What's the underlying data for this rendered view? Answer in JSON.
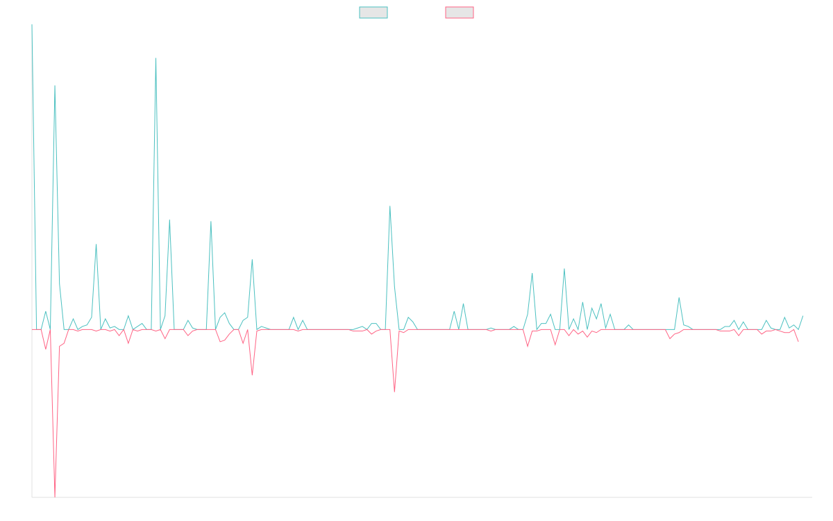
{
  "chart_data": {
    "type": "line",
    "title": "",
    "xlabel": "",
    "ylabel": "",
    "ylim": [
      -0.55,
      1.0
    ],
    "xlim": [
      0,
      170
    ],
    "grid": false,
    "legend": {
      "position": "top-center"
    },
    "series": [
      {
        "color": "#4bc0c0",
        "values": [
          1.0,
          0,
          0,
          0.06,
          0,
          0.8,
          0.15,
          0,
          0,
          0.035,
          0,
          0.01,
          0.015,
          0.04,
          0.28,
          0,
          0.035,
          0.005,
          0.01,
          0,
          0,
          0.045,
          0,
          0.01,
          0.02,
          0,
          0,
          0.89,
          0,
          0.045,
          0.36,
          0,
          0,
          0,
          0.03,
          0.005,
          0,
          0,
          0,
          0.355,
          0,
          0.04,
          0.055,
          0.02,
          0,
          0,
          0.03,
          0.04,
          0.23,
          0,
          0.01,
          0.005,
          0,
          0,
          0,
          0,
          0,
          0.04,
          0,
          0.03,
          0,
          0,
          0,
          0,
          0,
          0,
          0,
          0,
          0,
          0,
          0,
          0.005,
          0.01,
          0,
          0.02,
          0.02,
          0,
          0,
          0.405,
          0.14,
          0,
          0,
          0.04,
          0.025,
          0,
          0,
          0,
          0,
          0,
          0,
          0,
          0,
          0.06,
          0,
          0.085,
          0,
          0,
          0,
          0,
          0,
          0.005,
          0,
          0,
          0,
          0,
          0.01,
          0,
          0,
          0.05,
          0.185,
          0,
          0.02,
          0.02,
          0.05,
          0,
          0,
          0.2,
          0,
          0.035,
          0,
          0.09,
          0,
          0.07,
          0.035,
          0.085,
          0.005,
          0.05,
          0,
          0,
          0,
          0.015,
          0,
          0,
          0,
          0,
          0,
          0,
          0,
          0,
          0,
          0,
          0.105,
          0.015,
          0.01,
          0,
          0,
          0,
          0,
          0,
          0,
          0,
          0.01,
          0.01,
          0.03,
          0,
          0.025,
          0,
          0,
          0,
          0,
          0.03,
          0.005,
          0,
          0,
          0.04,
          0.005,
          0.015,
          0,
          0.045
        ]
      },
      {
        "color": "#ff6384",
        "values": [
          0,
          0,
          0,
          -0.065,
          0,
          -0.55,
          -0.055,
          -0.045,
          0,
          0,
          -0.005,
          0,
          0,
          0,
          -0.005,
          0,
          0,
          -0.005,
          0,
          -0.02,
          0,
          -0.045,
          0,
          -0.005,
          0,
          0,
          0,
          -0.005,
          0,
          -0.03,
          0,
          0,
          0,
          0,
          -0.02,
          -0.005,
          0,
          0,
          0,
          0,
          0,
          -0.04,
          -0.035,
          -0.015,
          0,
          0,
          -0.045,
          0,
          -0.15,
          -0.005,
          0,
          0,
          0,
          0,
          0,
          0,
          0,
          0,
          -0.005,
          0,
          0,
          0,
          0,
          0,
          0,
          0,
          0,
          0,
          0,
          0,
          -0.005,
          -0.005,
          -0.005,
          0,
          -0.015,
          -0.005,
          0,
          0,
          0,
          -0.205,
          -0.005,
          -0.01,
          0,
          0,
          0,
          0,
          0,
          0,
          0,
          0,
          0,
          0,
          0,
          0,
          0,
          0,
          0,
          0,
          0,
          0,
          -0.005,
          0,
          0,
          0,
          0,
          0,
          0,
          0,
          -0.055,
          -0.005,
          -0.005,
          0,
          0,
          0,
          -0.05,
          0,
          0,
          -0.02,
          0,
          -0.015,
          -0.005,
          -0.025,
          -0.005,
          -0.01,
          0,
          0,
          0,
          0,
          0,
          0,
          0,
          0,
          0,
          0,
          0,
          0,
          0,
          0,
          0,
          -0.03,
          -0.015,
          -0.01,
          0,
          0,
          0,
          0,
          0,
          0,
          0,
          0,
          -0.005,
          -0.005,
          -0.005,
          0,
          -0.02,
          0,
          0,
          0,
          0,
          -0.015,
          -0.005,
          -0.005,
          0,
          -0.005,
          -0.01,
          -0.01,
          0,
          -0.04
        ]
      }
    ]
  }
}
